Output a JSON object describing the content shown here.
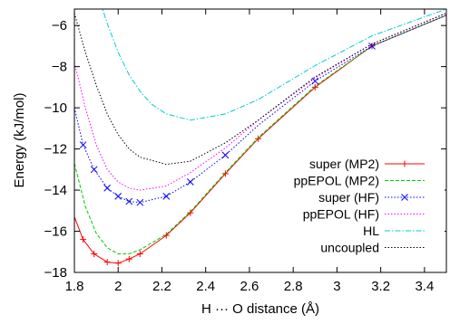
{
  "chart_data": {
    "type": "line",
    "xlabel": "H ··· O distance (Å)",
    "ylabel": "Energy (kJ/mol)",
    "xlim": [
      1.8,
      3.5
    ],
    "ylim": [
      -18,
      -5.2
    ],
    "xticks": [
      1.8,
      2.0,
      2.2,
      2.4,
      2.6,
      2.8,
      3.0,
      3.2,
      3.4
    ],
    "xtick_labels": [
      "1.8",
      "2",
      "2.2",
      "2.4",
      "2.6",
      "2.8",
      "3",
      "3.2",
      "3.4"
    ],
    "yticks": [
      -18,
      -16,
      -14,
      -12,
      -10,
      -8,
      -6
    ],
    "ytick_labels": [
      "−18",
      "−16",
      "−14",
      "−12",
      "−10",
      "−8",
      "−6"
    ],
    "grid": false,
    "legend_position": "bottom-right",
    "series": [
      {
        "name": "super (MP2)",
        "color": "#ff0000",
        "dash": "solid",
        "marker": "plus",
        "x": [
          1.8,
          1.84,
          1.89,
          1.95,
          2.0,
          2.05,
          2.1,
          2.22,
          2.33,
          2.49,
          2.64,
          2.9,
          3.16,
          3.5
        ],
        "y": [
          -15.3,
          -16.4,
          -17.1,
          -17.5,
          -17.55,
          -17.35,
          -17.1,
          -16.2,
          -15.1,
          -13.2,
          -11.5,
          -9.0,
          -7.0,
          -5.5
        ],
        "marker_x": [
          1.84,
          1.89,
          1.95,
          2.0,
          2.05,
          2.1,
          2.22,
          2.33,
          2.49,
          2.64,
          2.9,
          3.16
        ]
      },
      {
        "name": "ppEPOL (MP2)",
        "color": "#00cc00",
        "dash": "dashed",
        "marker": "none",
        "x": [
          1.8,
          1.85,
          1.9,
          1.95,
          2.0,
          2.05,
          2.1,
          2.22,
          2.33,
          2.49,
          2.64,
          2.9,
          3.16,
          3.5
        ],
        "y": [
          -12.7,
          -14.8,
          -16.1,
          -16.8,
          -17.1,
          -17.1,
          -16.9,
          -16.15,
          -15.05,
          -13.15,
          -11.45,
          -8.95,
          -7.0,
          -5.5
        ]
      },
      {
        "name": "super (HF)",
        "color": "#0000ff",
        "dash": "dotted",
        "marker": "x",
        "x": [
          1.8,
          1.84,
          1.89,
          1.95,
          2.0,
          2.05,
          2.1,
          2.22,
          2.33,
          2.49,
          2.64,
          2.9,
          3.16,
          3.5
        ],
        "y": [
          -10.0,
          -11.8,
          -13.0,
          -13.9,
          -14.3,
          -14.55,
          -14.6,
          -14.3,
          -13.6,
          -12.3,
          -10.85,
          -8.7,
          -7.0,
          -5.5
        ],
        "marker_x": [
          1.84,
          1.89,
          1.95,
          2.0,
          2.05,
          2.1,
          2.22,
          2.33,
          2.49,
          2.9,
          3.16
        ]
      },
      {
        "name": "ppEPOL (HF)",
        "color": "#ff00ff",
        "dash": "dotted",
        "marker": "none",
        "x": [
          1.8,
          1.85,
          1.9,
          1.95,
          2.0,
          2.05,
          2.1,
          2.22,
          2.33,
          2.49,
          2.64,
          2.9,
          3.16,
          3.5
        ],
        "y": [
          -7.8,
          -10.0,
          -11.8,
          -13.0,
          -13.6,
          -13.9,
          -14.0,
          -13.8,
          -13.15,
          -11.95,
          -10.6,
          -8.55,
          -6.9,
          -5.4
        ]
      },
      {
        "name": "HL",
        "color": "#00cccc",
        "dash": "dashdot",
        "marker": "none",
        "x": [
          1.92,
          1.95,
          2.0,
          2.05,
          2.1,
          2.15,
          2.22,
          2.33,
          2.49,
          2.64,
          2.9,
          3.16,
          3.5
        ],
        "y": [
          -4.9,
          -5.9,
          -7.3,
          -8.4,
          -9.2,
          -9.8,
          -10.3,
          -10.6,
          -10.3,
          -9.6,
          -7.95,
          -6.5,
          -5.2
        ]
      },
      {
        "name": "uncoupled",
        "color": "#000000",
        "dash": "dotted",
        "marker": "none",
        "x": [
          1.8,
          1.85,
          1.9,
          1.95,
          2.0,
          2.05,
          2.1,
          2.22,
          2.33,
          2.49,
          2.64,
          2.9,
          3.16,
          3.5
        ],
        "y": [
          -5.4,
          -7.3,
          -8.9,
          -10.3,
          -11.3,
          -12.0,
          -12.4,
          -12.75,
          -12.6,
          -11.7,
          -10.6,
          -8.5,
          -6.9,
          -5.4
        ]
      }
    ]
  }
}
